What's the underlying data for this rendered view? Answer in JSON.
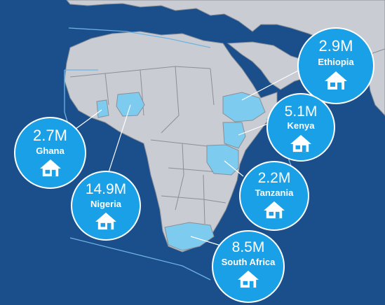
{
  "colors": {
    "ocean": "#1a4f8c",
    "land": "#c9cdd3",
    "borders": "#8a8f96",
    "highlight": "#7ecbf0",
    "bubble": "#1aa0e6",
    "text": "#ffffff"
  },
  "bubbles": {
    "ethiopia": {
      "value": "2.9M",
      "country": "Ethiopia",
      "icon": "house-icon"
    },
    "kenya": {
      "value": "5.1M",
      "country": "Kenya",
      "icon": "house-icon"
    },
    "ghana": {
      "value": "2.7M",
      "country": "Ghana",
      "icon": "house-icon"
    },
    "tanzania": {
      "value": "2.2M",
      "country": "Tanzania",
      "icon": "house-icon"
    },
    "nigeria": {
      "value": "14.9M",
      "country": "Nigeria",
      "icon": "house-icon"
    },
    "southafrica": {
      "value": "8.5M",
      "country": "South Africa",
      "icon": "house-icon"
    }
  }
}
